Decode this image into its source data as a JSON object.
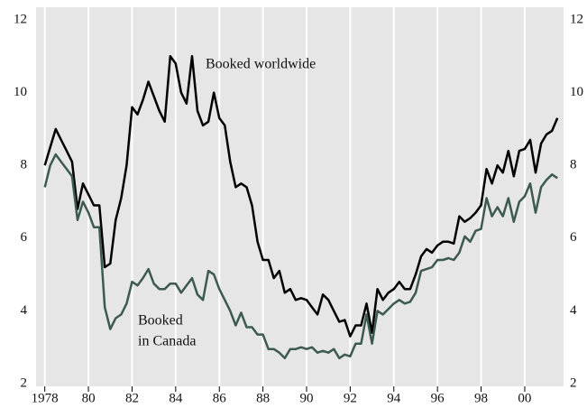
{
  "chart_data": {
    "type": "line",
    "annotations": [
      "Booked worldwide",
      "Booked",
      "in Canada"
    ],
    "x": [
      1978,
      1978.25,
      1978.5,
      1978.75,
      1979,
      1979.25,
      1979.5,
      1979.75,
      1980,
      1980.25,
      1980.5,
      1980.75,
      1981,
      1981.25,
      1981.5,
      1981.75,
      1982,
      1982.25,
      1982.5,
      1982.75,
      1983,
      1983.25,
      1983.5,
      1983.75,
      1984,
      1984.25,
      1984.5,
      1984.75,
      1985,
      1985.25,
      1985.5,
      1985.75,
      1986,
      1986.25,
      1986.5,
      1986.75,
      1987,
      1987.25,
      1987.5,
      1987.75,
      1988,
      1988.25,
      1988.5,
      1988.75,
      1989,
      1989.25,
      1989.5,
      1989.75,
      1990,
      1990.25,
      1990.5,
      1990.75,
      1991,
      1991.25,
      1991.5,
      1991.75,
      1992,
      1992.25,
      1992.5,
      1992.75,
      1993,
      1993.25,
      1993.5,
      1993.75,
      1994,
      1994.25,
      1994.5,
      1994.75,
      1995,
      1995.25,
      1995.5,
      1995.75,
      1996,
      1996.25,
      1996.5,
      1996.75,
      1997,
      1997.25,
      1997.5,
      1997.75,
      1998,
      1998.25,
      1998.5,
      1998.75,
      1999,
      1999.25,
      1999.5,
      1999.75,
      2000,
      2000.25,
      2000.5,
      2000.75,
      2001,
      2001.25,
      2001.5
    ],
    "series": [
      {
        "color": "#000000",
        "values": [
          8.0,
          8.5,
          9.0,
          8.7,
          8.4,
          8.1,
          6.8,
          7.5,
          7.2,
          6.9,
          6.9,
          5.2,
          5.3,
          6.5,
          7.1,
          8.0,
          9.6,
          9.4,
          9.8,
          10.3,
          9.9,
          9.5,
          9.2,
          11.0,
          10.8,
          10.0,
          9.7,
          11.0,
          9.5,
          9.1,
          9.2,
          10.0,
          9.3,
          9.1,
          8.1,
          7.4,
          7.5,
          7.4,
          6.9,
          5.9,
          5.4,
          5.4,
          4.9,
          5.1,
          4.5,
          4.6,
          4.3,
          4.35,
          4.3,
          4.1,
          3.9,
          4.45,
          4.3,
          4.0,
          3.7,
          3.75,
          3.3,
          3.6,
          3.6,
          4.2,
          3.4,
          4.6,
          4.3,
          4.5,
          4.6,
          4.8,
          4.6,
          4.6,
          5.0,
          5.5,
          5.7,
          5.6,
          5.8,
          5.9,
          5.9,
          5.85,
          6.6,
          6.45,
          6.55,
          6.7,
          6.9,
          7.9,
          7.5,
          8.0,
          7.8,
          8.4,
          7.7,
          8.4,
          8.45,
          8.7,
          7.8,
          8.6,
          8.85,
          8.95,
          9.3
        ]
      },
      {
        "color": "#3d5a50",
        "values": [
          7.4,
          8.0,
          8.3,
          8.1,
          7.9,
          7.7,
          6.5,
          7.0,
          6.7,
          6.3,
          6.3,
          4.1,
          3.5,
          3.8,
          3.9,
          4.2,
          4.8,
          4.7,
          4.9,
          5.15,
          4.75,
          4.6,
          4.6,
          4.75,
          4.75,
          4.5,
          4.7,
          4.9,
          4.45,
          4.3,
          5.1,
          5.0,
          4.6,
          4.3,
          4.0,
          3.6,
          3.95,
          3.55,
          3.55,
          3.35,
          3.35,
          2.95,
          2.95,
          2.85,
          2.7,
          2.95,
          2.95,
          3.0,
          2.95,
          3.0,
          2.85,
          2.9,
          2.85,
          2.95,
          2.7,
          2.8,
          2.75,
          3.1,
          3.1,
          3.9,
          3.1,
          4.0,
          3.9,
          4.05,
          4.2,
          4.3,
          4.2,
          4.25,
          4.5,
          5.1,
          5.15,
          5.2,
          5.4,
          5.4,
          5.45,
          5.4,
          5.6,
          6.05,
          5.9,
          6.2,
          6.25,
          7.1,
          6.6,
          6.85,
          6.6,
          7.1,
          6.45,
          7.0,
          7.15,
          7.5,
          6.7,
          7.4,
          7.6,
          7.75,
          7.65
        ]
      }
    ],
    "xlim": [
      1977.6,
      2001.78
    ],
    "xticks": [
      1978,
      {
        "value": 1980,
        "label": "80"
      },
      {
        "value": 1982,
        "label": "82"
      },
      {
        "value": 1984,
        "label": "84"
      },
      {
        "value": 1986,
        "label": "86"
      },
      {
        "value": 1988,
        "label": "88"
      },
      {
        "value": 1990,
        "label": "90"
      },
      {
        "value": 1992,
        "label": "92"
      },
      {
        "value": 1994,
        "label": "94"
      },
      {
        "value": 1996,
        "label": "96"
      },
      {
        "value": 1998,
        "label": "98"
      },
      {
        "value": 2000,
        "label": "00"
      }
    ],
    "ylim": [
      2,
      12
    ],
    "yticks": [
      2,
      4,
      6,
      8,
      10,
      12
    ],
    "grid": "x"
  }
}
